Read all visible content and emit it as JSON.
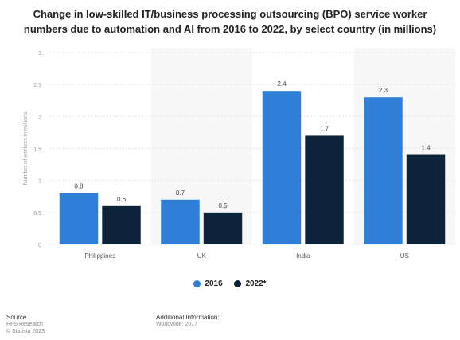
{
  "chart_data": {
    "type": "bar",
    "title": "Change in low-skilled IT/business processing outsourcing (BPO) service worker numbers due to automation and AI from 2016 to 2022, by select country (in millions)",
    "categories": [
      "Philippines",
      "UK",
      "India",
      "US"
    ],
    "series": [
      {
        "name": "2016",
        "color": "#2f7ed8",
        "values": [
          0.8,
          0.7,
          2.4,
          2.3
        ]
      },
      {
        "name": "2022*",
        "color": "#0d233a",
        "values": [
          0.6,
          0.5,
          1.7,
          1.4
        ]
      }
    ],
    "xlabel": "",
    "ylabel": "Number of workers in millions",
    "ylim": [
      0,
      3
    ],
    "yticks": [
      "0",
      "0.5",
      "1",
      "1.5",
      "2",
      "2.5",
      "3"
    ],
    "data_labels": [
      [
        "0.8",
        "0.7",
        "2.4",
        "2.3"
      ],
      [
        "0.6",
        "0.5",
        "1.7",
        "1.4"
      ]
    ],
    "grid": true,
    "legend": "bottom-center"
  },
  "footer": {
    "source_heading": "Source",
    "source_lines": [
      "HFS Research",
      "© Statista 2023"
    ],
    "info_heading": "Additional Information:",
    "info_lines": [
      "Worldwide; 2017"
    ]
  }
}
